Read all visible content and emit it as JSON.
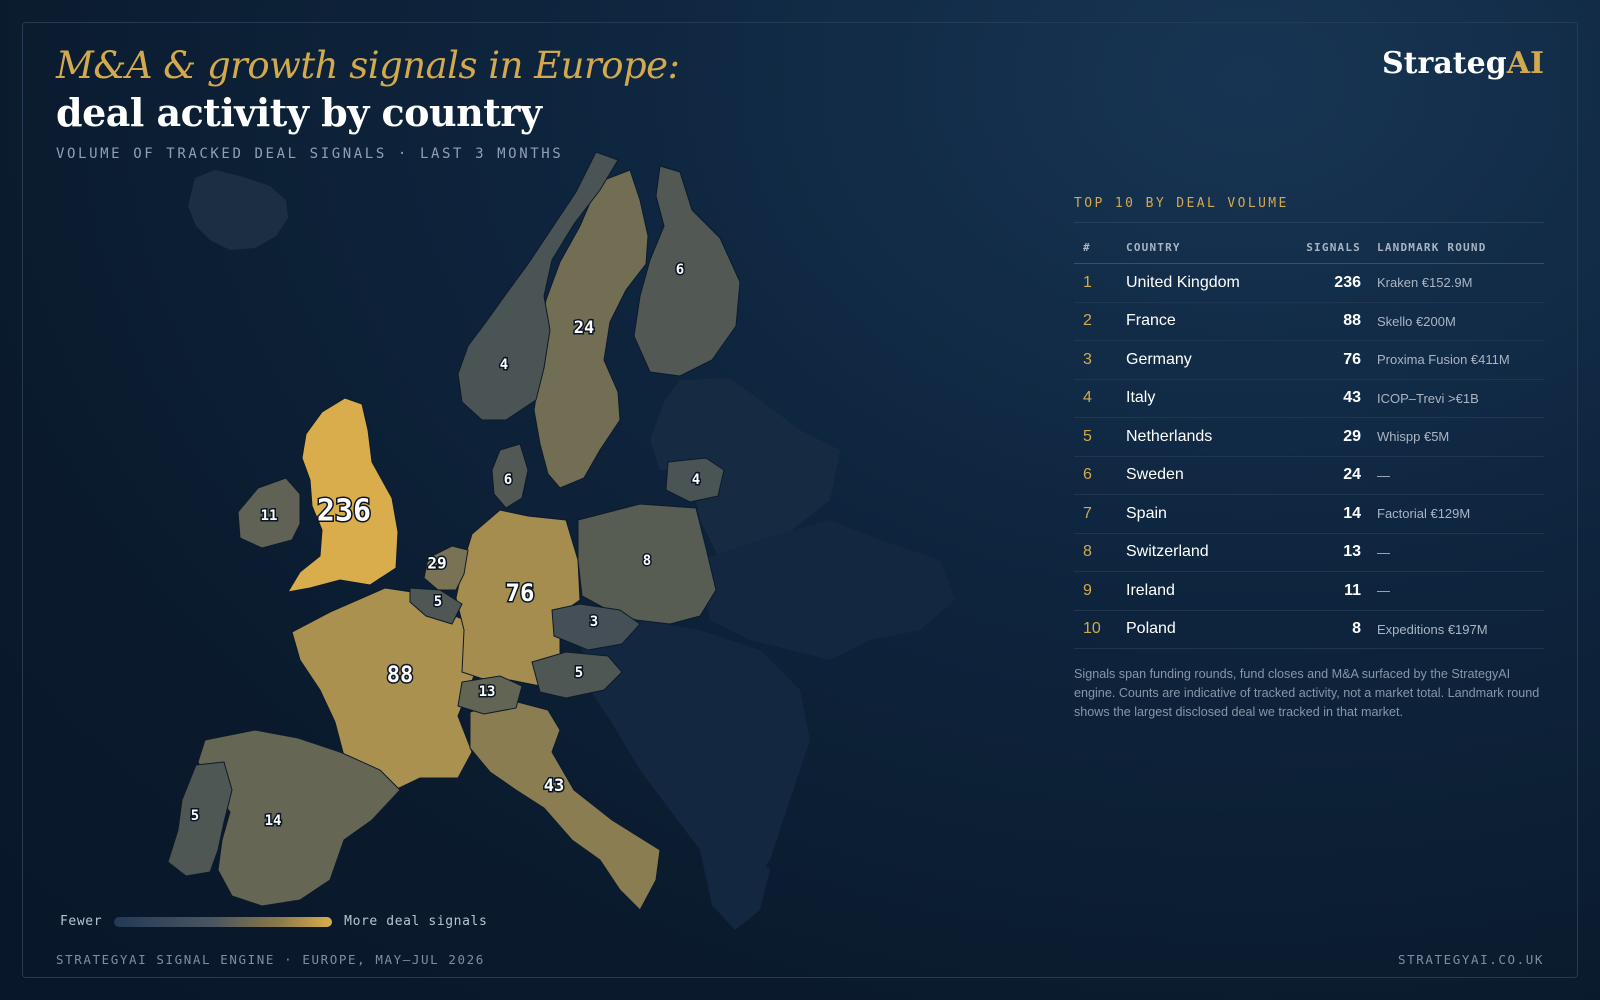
{
  "header": {
    "title_gold": "M&A & growth signals in Europe:",
    "title_white": "deal activity by country",
    "subtitle": "VOLUME OF TRACKED DEAL SIGNALS · LAST 3 MONTHS"
  },
  "logo": {
    "prefix": "Strateg",
    "suffix": "AI"
  },
  "colors": {
    "accent": "#d3a94f",
    "low": "#223a55",
    "high": "#d9ad4c",
    "background": "#0a1a2c"
  },
  "map": {
    "countries": [
      {
        "name": "United Kingdom",
        "value": 236,
        "label": "236"
      },
      {
        "name": "France",
        "value": 88,
        "label": "88"
      },
      {
        "name": "Germany",
        "value": 76,
        "label": "76"
      },
      {
        "name": "Italy",
        "value": 43,
        "label": "43"
      },
      {
        "name": "Netherlands",
        "value": 29,
        "label": "29"
      },
      {
        "name": "Sweden",
        "value": 24,
        "label": "24"
      },
      {
        "name": "Spain",
        "value": 14,
        "label": "14"
      },
      {
        "name": "Switzerland",
        "value": 13,
        "label": "13"
      },
      {
        "name": "Ireland",
        "value": 11,
        "label": "11"
      },
      {
        "name": "Poland",
        "value": 8,
        "label": "8"
      },
      {
        "name": "Finland",
        "value": 6,
        "label": "6"
      },
      {
        "name": "Denmark",
        "value": 6,
        "label": "6"
      },
      {
        "name": "Norway",
        "value": 4,
        "label": "4"
      },
      {
        "name": "Lithuania",
        "value": 4,
        "label": "4"
      },
      {
        "name": "Belgium",
        "value": 5,
        "label": "5"
      },
      {
        "name": "Austria",
        "value": 5,
        "label": "5"
      },
      {
        "name": "Portugal",
        "value": 5,
        "label": "5"
      },
      {
        "name": "Czechia",
        "value": 3,
        "label": "3"
      }
    ]
  },
  "legend": {
    "low_label": "Fewer",
    "high_label": "More deal signals"
  },
  "panel": {
    "heading": "TOP 10 BY DEAL VOLUME",
    "columns": {
      "rank": "#",
      "country": "COUNTRY",
      "signals": "SIGNALS",
      "landmark": "LANDMARK ROUND"
    },
    "rows": [
      {
        "rank": "1",
        "country": "United Kingdom",
        "signals": "236",
        "landmark": "Kraken €152.9M"
      },
      {
        "rank": "2",
        "country": "France",
        "signals": "88",
        "landmark": "Skello €200M"
      },
      {
        "rank": "3",
        "country": "Germany",
        "signals": "76",
        "landmark": "Proxima Fusion €411M"
      },
      {
        "rank": "4",
        "country": "Italy",
        "signals": "43",
        "landmark": "ICOP–Trevi >€1B"
      },
      {
        "rank": "5",
        "country": "Netherlands",
        "signals": "29",
        "landmark": "Whispp €5M"
      },
      {
        "rank": "6",
        "country": "Sweden",
        "signals": "24",
        "landmark": "—"
      },
      {
        "rank": "7",
        "country": "Spain",
        "signals": "14",
        "landmark": "Factorial €129M"
      },
      {
        "rank": "8",
        "country": "Switzerland",
        "signals": "13",
        "landmark": "—"
      },
      {
        "rank": "9",
        "country": "Ireland",
        "signals": "11",
        "landmark": "—"
      },
      {
        "rank": "10",
        "country": "Poland",
        "signals": "8",
        "landmark": "Expeditions €197M"
      }
    ],
    "note": "Signals span funding rounds, fund closes and M&A surfaced by the StrategyAI engine. Counts are indicative of tracked activity, not a market total. Landmark round shows the largest disclosed deal we tracked in that market."
  },
  "footer": {
    "left": "STRATEGYAI SIGNAL ENGINE · EUROPE, MAY–JUL 2026",
    "right": "STRATEGYAI.CO.UK"
  }
}
